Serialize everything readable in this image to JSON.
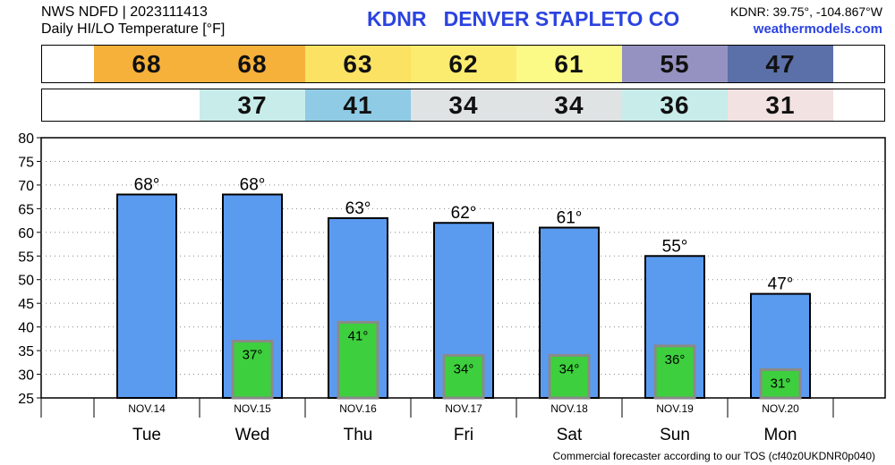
{
  "header": {
    "line1": "NWS NDFD | 2023111413",
    "line2": "Daily HI/LO Temperature [°F]",
    "title": "KDNR   DENVER STAPLETO CO",
    "coords": "KDNR: 39.75°, -104.867°W",
    "site": "weathermodels.com"
  },
  "hi_strip": [
    {
      "text": "",
      "color": "#ffffff"
    },
    {
      "text": "68",
      "color": "#f6b13a"
    },
    {
      "text": "68",
      "color": "#f6b13a"
    },
    {
      "text": "63",
      "color": "#fbe263"
    },
    {
      "text": "62",
      "color": "#fbec70"
    },
    {
      "text": "61",
      "color": "#fbfa86"
    },
    {
      "text": "55",
      "color": "#9592c2"
    },
    {
      "text": "47",
      "color": "#5b6fa8"
    },
    {
      "text": "",
      "color": "#ffffff"
    }
  ],
  "lo_strip": [
    {
      "text": "",
      "color": "#ffffff"
    },
    {
      "text": "",
      "color": "#ffffff"
    },
    {
      "text": "37",
      "color": "#c8ecea"
    },
    {
      "text": "41",
      "color": "#8fcbe5"
    },
    {
      "text": "34",
      "color": "#dfe3e4"
    },
    {
      "text": "34",
      "color": "#dfe3e4"
    },
    {
      "text": "36",
      "color": "#c8ecea"
    },
    {
      "text": "31",
      "color": "#f3e2e2"
    },
    {
      "text": "",
      "color": "#ffffff"
    }
  ],
  "chart_data": {
    "type": "bar",
    "categories": [
      "Tue",
      "Wed",
      "Thu",
      "Fri",
      "Sat",
      "Sun",
      "Mon"
    ],
    "dates": [
      "NOV.14",
      "NOV.15",
      "NOV.16",
      "NOV.17",
      "NOV.18",
      "NOV.19",
      "NOV.20"
    ],
    "series": [
      {
        "values": [
          68,
          68,
          63,
          62,
          61,
          55,
          47
        ],
        "color": "#5a9bf0"
      },
      {
        "values": [
          null,
          37,
          41,
          34,
          34,
          36,
          31
        ],
        "color": "#3dcf3d"
      }
    ],
    "hi_labels": [
      "68°",
      "68°",
      "63°",
      "62°",
      "61°",
      "55°",
      "47°"
    ],
    "lo_labels": [
      "",
      "37°",
      "41°",
      "34°",
      "34°",
      "36°",
      "31°"
    ],
    "ylim": [
      25,
      80
    ],
    "yticks": [
      25,
      30,
      35,
      40,
      45,
      50,
      55,
      60,
      65,
      70,
      75,
      80
    ],
    "grid": true,
    "title": "",
    "xlabel": "",
    "ylabel": ""
  },
  "footer": "Commercial forecaster according to our TOS (cf40z0UKDNR0p040)"
}
